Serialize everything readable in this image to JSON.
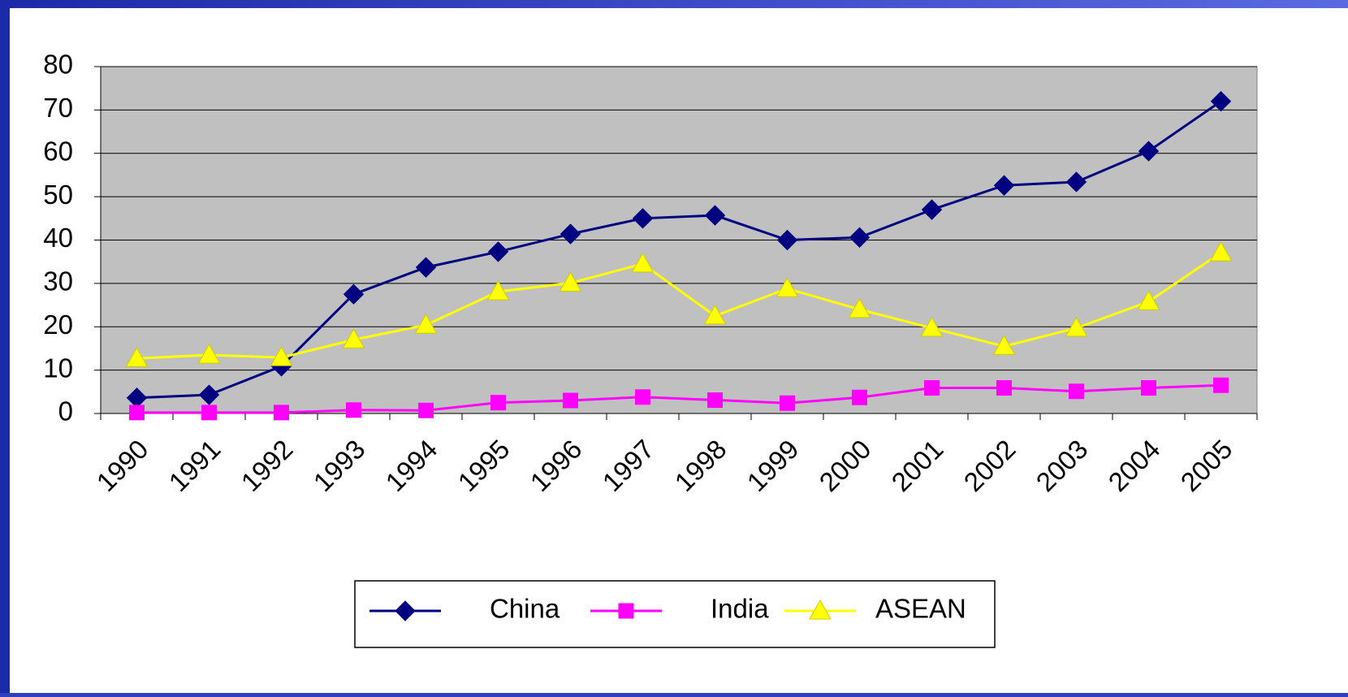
{
  "chart_data": {
    "type": "line",
    "categories": [
      "1990",
      "1991",
      "1992",
      "1993",
      "1994",
      "1995",
      "1996",
      "1997",
      "1998",
      "1999",
      "2000",
      "2001",
      "2002",
      "2003",
      "2004",
      "2005"
    ],
    "series": [
      {
        "name": "China",
        "color": "#000080",
        "marker": "diamond",
        "values": [
          3.6,
          4.3,
          10.9,
          27.5,
          33.7,
          37.3,
          41.4,
          45,
          45.7,
          40,
          40.6,
          47,
          52.6,
          53.4,
          60.5,
          72
        ]
      },
      {
        "name": "India",
        "color": "#ff00ff",
        "marker": "square",
        "values": [
          0.2,
          0.2,
          0.2,
          0.8,
          0.7,
          2.5,
          3,
          3.8,
          3.1,
          2.4,
          3.7,
          5.9,
          5.9,
          5.1,
          5.9,
          6.5
        ]
      },
      {
        "name": "ASEAN",
        "color": "#ffff00",
        "marker": "triangle",
        "values": [
          12.7,
          13.5,
          12.9,
          17,
          20.4,
          28.1,
          30.1,
          34.5,
          22.5,
          28.8,
          24,
          19.7,
          15.5,
          19.7,
          25.8,
          37.1
        ]
      }
    ],
    "ylim": [
      0,
      80
    ],
    "yticks": [
      0,
      10,
      20,
      30,
      40,
      50,
      60,
      70,
      80
    ],
    "grid": true,
    "legend": "bottom"
  }
}
